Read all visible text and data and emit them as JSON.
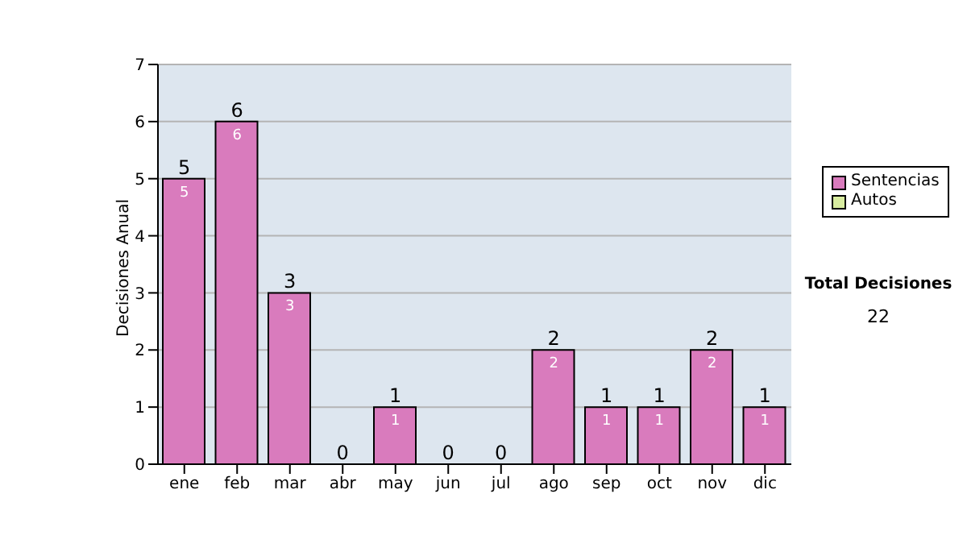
{
  "chart_data": {
    "type": "bar",
    "stacked": true,
    "ylabel": "Decisiones Anual",
    "categories": [
      "ene",
      "feb",
      "mar",
      "abr",
      "may",
      "jun",
      "jul",
      "ago",
      "sep",
      "oct",
      "nov",
      "dic"
    ],
    "series": [
      {
        "name": "Sentencias",
        "color": "#d97bbd",
        "values": [
          5,
          6,
          3,
          0,
          1,
          0,
          0,
          2,
          1,
          1,
          2,
          1
        ],
        "value_labels": [
          "5",
          "6",
          "3",
          null,
          "1",
          null,
          null,
          "2",
          "1",
          "1",
          "2",
          "1"
        ]
      },
      {
        "name": "Autos",
        "color": "#d8eca0",
        "values": [
          0,
          0,
          0,
          0,
          0,
          0,
          0,
          0,
          0,
          0,
          0,
          0
        ]
      }
    ],
    "totals": [
      "5",
      "6",
      "3",
      "0",
      "1",
      "0",
      "0",
      "2",
      "1",
      "1",
      "2",
      "1"
    ],
    "ylim": [
      0,
      7
    ],
    "yticks": [
      0,
      1,
      2,
      3,
      4,
      5,
      6,
      7
    ],
    "grid": "y",
    "legend": "right",
    "annotations": [
      "Total Decisiones",
      "22"
    ]
  }
}
